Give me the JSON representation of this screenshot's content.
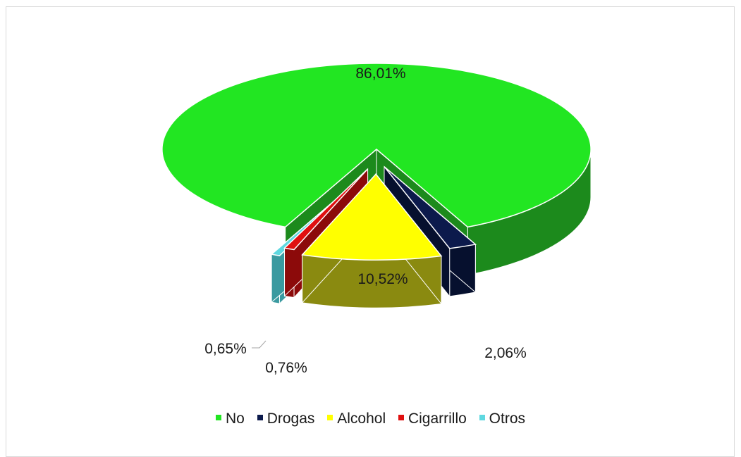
{
  "chart_data": {
    "type": "pie",
    "title": "",
    "categories": [
      "No",
      "Drogas",
      "Alcohol",
      "Cigarrillo",
      "Otros"
    ],
    "values": [
      86.01,
      2.06,
      10.52,
      0.76,
      0.65
    ],
    "data_labels": [
      "86,01%",
      "2,06%",
      "10,52%",
      "0,76%",
      "0,65%"
    ],
    "colors": [
      "#22e622",
      "#0c1a4c",
      "#ffff00",
      "#e01010",
      "#5fd8e0"
    ],
    "side_colors": [
      "#1c8a1c",
      "#06102e",
      "#8a8a10",
      "#8c0a0a",
      "#3a9aa0"
    ],
    "legend_position": "bottom",
    "exploded": true,
    "three_d": true
  }
}
